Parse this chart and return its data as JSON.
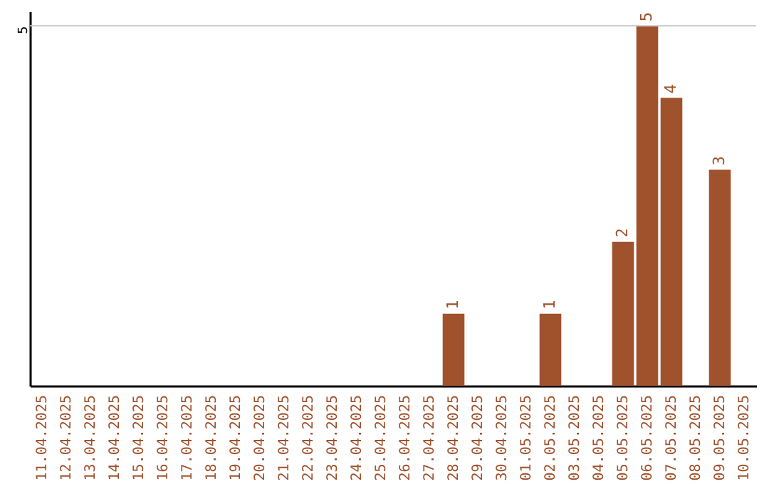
{
  "chart_data": {
    "type": "bar",
    "categories": [
      "11.04.2025",
      "12.04.2025",
      "13.04.2025",
      "14.04.2025",
      "15.04.2025",
      "16.04.2025",
      "17.04.2025",
      "18.04.2025",
      "19.04.2025",
      "20.04.2025",
      "21.04.2025",
      "22.04.2025",
      "23.04.2025",
      "24.04.2025",
      "25.04.2025",
      "26.04.2025",
      "27.04.2025",
      "28.04.2025",
      "29.04.2025",
      "30.04.2025",
      "01.05.2025",
      "02.05.2025",
      "03.05.2025",
      "04.05.2025",
      "05.05.2025",
      "06.05.2025",
      "07.05.2025",
      "08.05.2025",
      "09.05.2025",
      "10.05.2025"
    ],
    "values": [
      null,
      null,
      null,
      null,
      null,
      null,
      null,
      null,
      null,
      null,
      null,
      null,
      null,
      null,
      null,
      null,
      null,
      1,
      null,
      null,
      null,
      1,
      null,
      null,
      2,
      5,
      4,
      null,
      3,
      null
    ],
    "data_labels": true,
    "color": "#a0522d",
    "ref_lines": [
      {
        "axis": "y",
        "value": 5,
        "label": "5",
        "color": "#c8c8c8"
      }
    ]
  }
}
